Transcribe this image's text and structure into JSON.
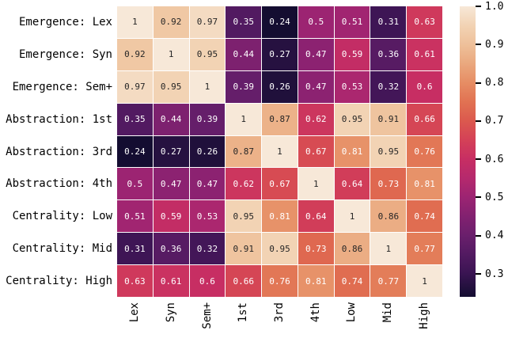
{
  "figure": {
    "background": "#ffffff",
    "gridline_color": "#ffffff",
    "text_color": "#000000"
  },
  "chart_data": {
    "type": "heatmap",
    "title": "",
    "row_labels": [
      "Emergence: Lex",
      "Emergence: Syn",
      "Emergence: Sem+",
      "Abstraction: 1st",
      "Abstraction: 3rd",
      "Abstraction: 4th",
      "Centrality: Low",
      "Centrality: Mid",
      "Centrality: High"
    ],
    "col_labels": [
      "Lex",
      "Syn",
      "Sem+",
      "1st",
      "3rd",
      "4th",
      "Low",
      "Mid",
      "High"
    ],
    "values": [
      [
        1,
        0.92,
        0.97,
        0.35,
        0.24,
        0.5,
        0.51,
        0.31,
        0.63
      ],
      [
        0.92,
        1,
        0.95,
        0.44,
        0.27,
        0.47,
        0.59,
        0.36,
        0.61
      ],
      [
        0.97,
        0.95,
        1,
        0.39,
        0.26,
        0.47,
        0.53,
        0.32,
        0.6
      ],
      [
        0.35,
        0.44,
        0.39,
        1,
        0.87,
        0.62,
        0.95,
        0.91,
        0.66
      ],
      [
        0.24,
        0.27,
        0.26,
        0.87,
        1,
        0.67,
        0.81,
        0.95,
        0.76
      ],
      [
        0.5,
        0.47,
        0.47,
        0.62,
        0.67,
        1,
        0.64,
        0.73,
        0.81
      ],
      [
        0.51,
        0.59,
        0.53,
        0.95,
        0.81,
        0.64,
        1,
        0.86,
        0.74
      ],
      [
        0.31,
        0.36,
        0.32,
        0.91,
        0.95,
        0.73,
        0.86,
        1,
        0.77
      ],
      [
        0.63,
        0.61,
        0.6,
        0.66,
        0.76,
        0.81,
        0.74,
        0.77,
        1
      ]
    ],
    "vmin": 0.24,
    "vmax": 1.0,
    "colormap": "rocket",
    "colormap_stops": [
      {
        "v": 1.0,
        "c": "#f7e8d8"
      },
      {
        "v": 0.95,
        "c": "#f2d3b4"
      },
      {
        "v": 0.9,
        "c": "#eec09a"
      },
      {
        "v": 0.85,
        "c": "#eaa87e"
      },
      {
        "v": 0.8,
        "c": "#e68d64"
      },
      {
        "v": 0.75,
        "c": "#e17252"
      },
      {
        "v": 0.7,
        "c": "#db594e"
      },
      {
        "v": 0.65,
        "c": "#d44157"
      },
      {
        "v": 0.6,
        "c": "#c72e63"
      },
      {
        "v": 0.55,
        "c": "#b5296d"
      },
      {
        "v": 0.5,
        "c": "#9c2472"
      },
      {
        "v": 0.45,
        "c": "#822170"
      },
      {
        "v": 0.4,
        "c": "#6a1f6c"
      },
      {
        "v": 0.35,
        "c": "#521a61"
      },
      {
        "v": 0.3,
        "c": "#391452"
      },
      {
        "v": 0.27,
        "c": "#261140"
      },
      {
        "v": 0.24,
        "c": "#140d31"
      }
    ],
    "annot_text_dark": "#262626",
    "annot_text_light": "#ffffff",
    "colorbar": {
      "position": "right",
      "tick_labels": [
        "1.0",
        "0.9",
        "0.8",
        "0.7",
        "0.6",
        "0.5",
        "0.4",
        "0.3"
      ],
      "tick_values": [
        1.0,
        0.9,
        0.8,
        0.7,
        0.6,
        0.5,
        0.4,
        0.3
      ]
    }
  }
}
